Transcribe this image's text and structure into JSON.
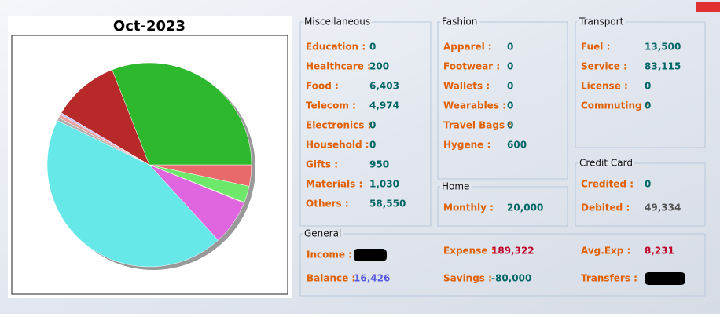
{
  "pie": {
    "title": "Oct-2023",
    "colors": [
      "#e86a6a",
      "#6ee86a",
      "#e8e060",
      "#e066e0",
      "#66e8e8",
      "#b0b0b0",
      "#e8a0a0",
      "#c0c0ff",
      "#b82a2a",
      "#2eb82e"
    ]
  },
  "panels": [
    {
      "title": "Miscellaneous",
      "rows": [
        {
          "label": "Education :",
          "value": "0"
        },
        {
          "label": "Healthcare :",
          "value": "200"
        },
        {
          "label": "Food :",
          "value": "6,403"
        },
        {
          "label": "Telecom :",
          "value": "4,974"
        },
        {
          "label": "Electronics :",
          "value": "0"
        },
        {
          "label": "Household :",
          "value": "0"
        },
        {
          "label": "Gifts :",
          "value": "950"
        },
        {
          "label": "Materials :",
          "value": "1,030"
        },
        {
          "label": "Others :",
          "value": "58,550"
        }
      ]
    },
    {
      "title": "Fashion",
      "rows": [
        {
          "label": "Apparel :",
          "value": "0"
        },
        {
          "label": "Footwear :",
          "value": "0"
        },
        {
          "label": "Wallets :",
          "value": "0"
        },
        {
          "label": "Wearables :",
          "value": "0"
        },
        {
          "label": "Travel Bags :",
          "value": "0"
        },
        {
          "label": "Hygene :",
          "value": "600"
        }
      ]
    },
    {
      "title": "Home",
      "rows": [
        {
          "label": "Monthly :",
          "value": "20,000"
        }
      ]
    },
    {
      "title": "Transport",
      "rows": [
        {
          "label": "Fuel :",
          "value": "13,500"
        },
        {
          "label": "Service :",
          "value": "83,115"
        },
        {
          "label": "License :",
          "value": "0"
        },
        {
          "label": "Commuting :",
          "value": "0"
        }
      ]
    },
    {
      "title": "Credit Card",
      "rows": [
        {
          "label": "Credited :",
          "value": "0"
        },
        {
          "label": "Debited :",
          "value": "49,334",
          "color": "#555555"
        }
      ]
    }
  ],
  "general": {
    "title": "General",
    "rows": [
      {
        "label": "Income :"
      },
      {
        "label": "Expense :",
        "value": "189,322",
        "color": "#c0002a"
      },
      {
        "label": "Avg.Exp :",
        "value": "8,231",
        "color": "#c0002a"
      },
      {
        "label": "Balance :",
        "value": "16,426",
        "color": "#5a5ae0"
      },
      {
        "label": "Savings :",
        "value": "-80,000"
      },
      {
        "label": "Transfers :"
      }
    ]
  }
}
